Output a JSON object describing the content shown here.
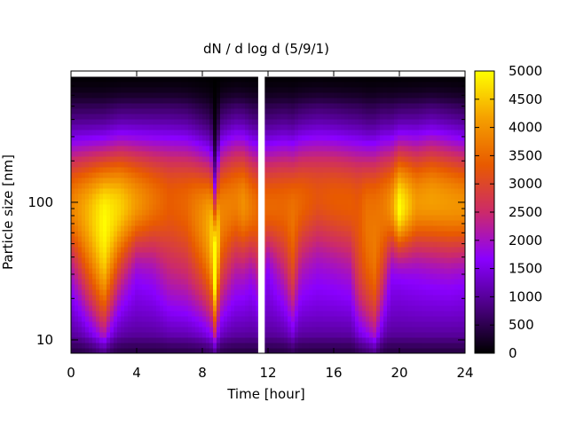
{
  "chart_data": {
    "type": "heatmap",
    "title": "dN / d log d (5/9/1)",
    "xlabel": "Time [hour]",
    "ylabel": "Particle size [nm]",
    "xlim": [
      0,
      24
    ],
    "ylim": [
      8,
      900
    ],
    "y_scale": "log",
    "x_ticks": [
      0,
      4,
      8,
      12,
      16,
      20,
      24
    ],
    "x_tick_labels": [
      "0",
      "4",
      "8",
      "12",
      "16",
      "20",
      "24"
    ],
    "y_ticks": [
      10,
      100
    ],
    "y_tick_labels": [
      "10",
      "100"
    ],
    "colorbar": {
      "range": [
        0,
        5000
      ],
      "ticks": [
        0,
        500,
        1000,
        1500,
        2000,
        2500,
        3000,
        3500,
        4000,
        4500,
        5000
      ],
      "tick_labels": [
        "0",
        "500",
        "1000",
        "1500",
        "2000",
        "2500",
        "3000",
        "3500",
        "4000",
        "4500",
        "5000"
      ],
      "colormap": "gnuplot-pm3d",
      "colors": [
        "#000000",
        "#4b0082",
        "#8a00ff",
        "#cc2a6a",
        "#e85a00",
        "#f5a000",
        "#ffff00"
      ]
    },
    "data_gap": {
      "from_hour": 11.4,
      "to_hour": 11.8
    },
    "time_hours": [
      0,
      1,
      2,
      3,
      4,
      5,
      6,
      7,
      8,
      8.5,
      8.8,
      9.1,
      10,
      10.5,
      11,
      11.4,
      12,
      13,
      13.5,
      14,
      15,
      16,
      17,
      17.5,
      18,
      18.5,
      19,
      19.5,
      20,
      21,
      22,
      23,
      24
    ],
    "peak_density": [
      3600,
      4100,
      4700,
      4400,
      3900,
      3500,
      3200,
      3300,
      3700,
      4000,
      4500,
      3600,
      3600,
      3800,
      3500,
      3300,
      3300,
      3300,
      3400,
      3300,
      3100,
      3200,
      3200,
      3100,
      3400,
      3400,
      3500,
      3800,
      4800,
      3900,
      4000,
      3900,
      3800
    ],
    "mode_diameter_nm": [
      100,
      95,
      90,
      100,
      105,
      110,
      115,
      110,
      90,
      80,
      35,
      95,
      110,
      105,
      100,
      100,
      100,
      105,
      100,
      110,
      120,
      115,
      110,
      110,
      100,
      100,
      105,
      100,
      95,
      105,
      110,
      105,
      100
    ],
    "lower_mode_cutoff_nm": [
      45,
      32,
      22,
      40,
      50,
      48,
      40,
      38,
      30,
      25,
      14,
      32,
      45,
      45,
      46,
      40,
      50,
      40,
      30,
      45,
      50,
      48,
      45,
      30,
      25,
      20,
      35,
      50,
      50,
      50,
      50,
      48,
      48
    ]
  }
}
